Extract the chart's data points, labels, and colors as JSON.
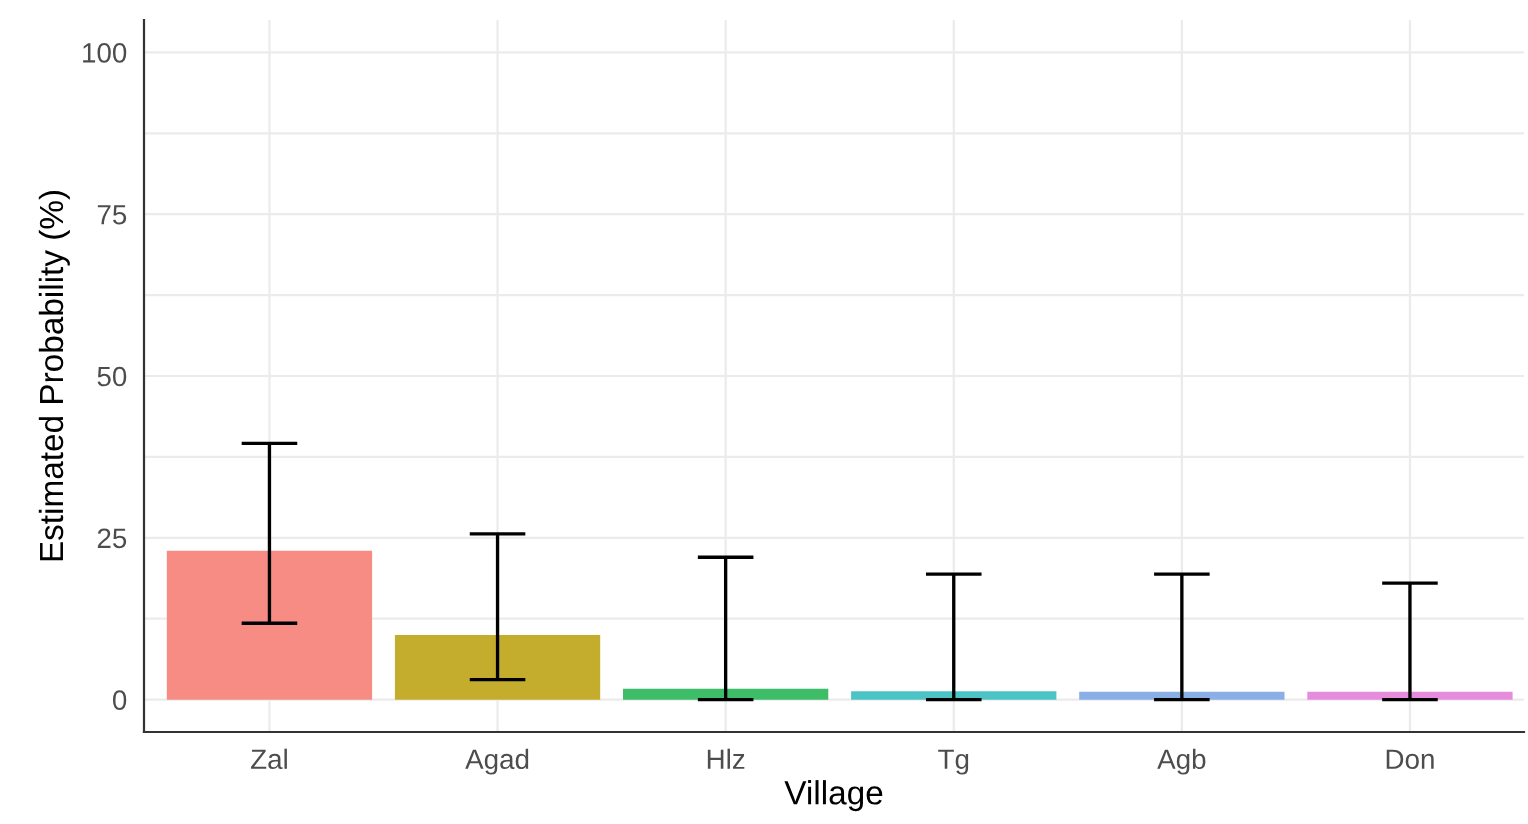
{
  "chart_data": {
    "type": "bar",
    "xlabel": "Village",
    "ylabel": "Estimated Probability (%)",
    "categories": [
      "Zal",
      "Agad",
      "Hlz",
      "Tg",
      "Agb",
      "Don"
    ],
    "values": [
      23,
      10,
      1.7,
      1.3,
      1.2,
      1.2
    ],
    "colors": [
      "#f78c84",
      "#c4ad2c",
      "#3dbd67",
      "#4cc3c4",
      "#8aaee6",
      "#e68cdc"
    ],
    "errors": [
      [
        11.8,
        39.6
      ],
      [
        3.1,
        25.6
      ],
      [
        0,
        22
      ],
      [
        0,
        19.4
      ],
      [
        0,
        19.4
      ],
      [
        0,
        18
      ]
    ],
    "ylim": [
      -5,
      105
    ],
    "yticks": [
      0,
      25,
      50,
      75,
      100
    ],
    "grid": true
  }
}
